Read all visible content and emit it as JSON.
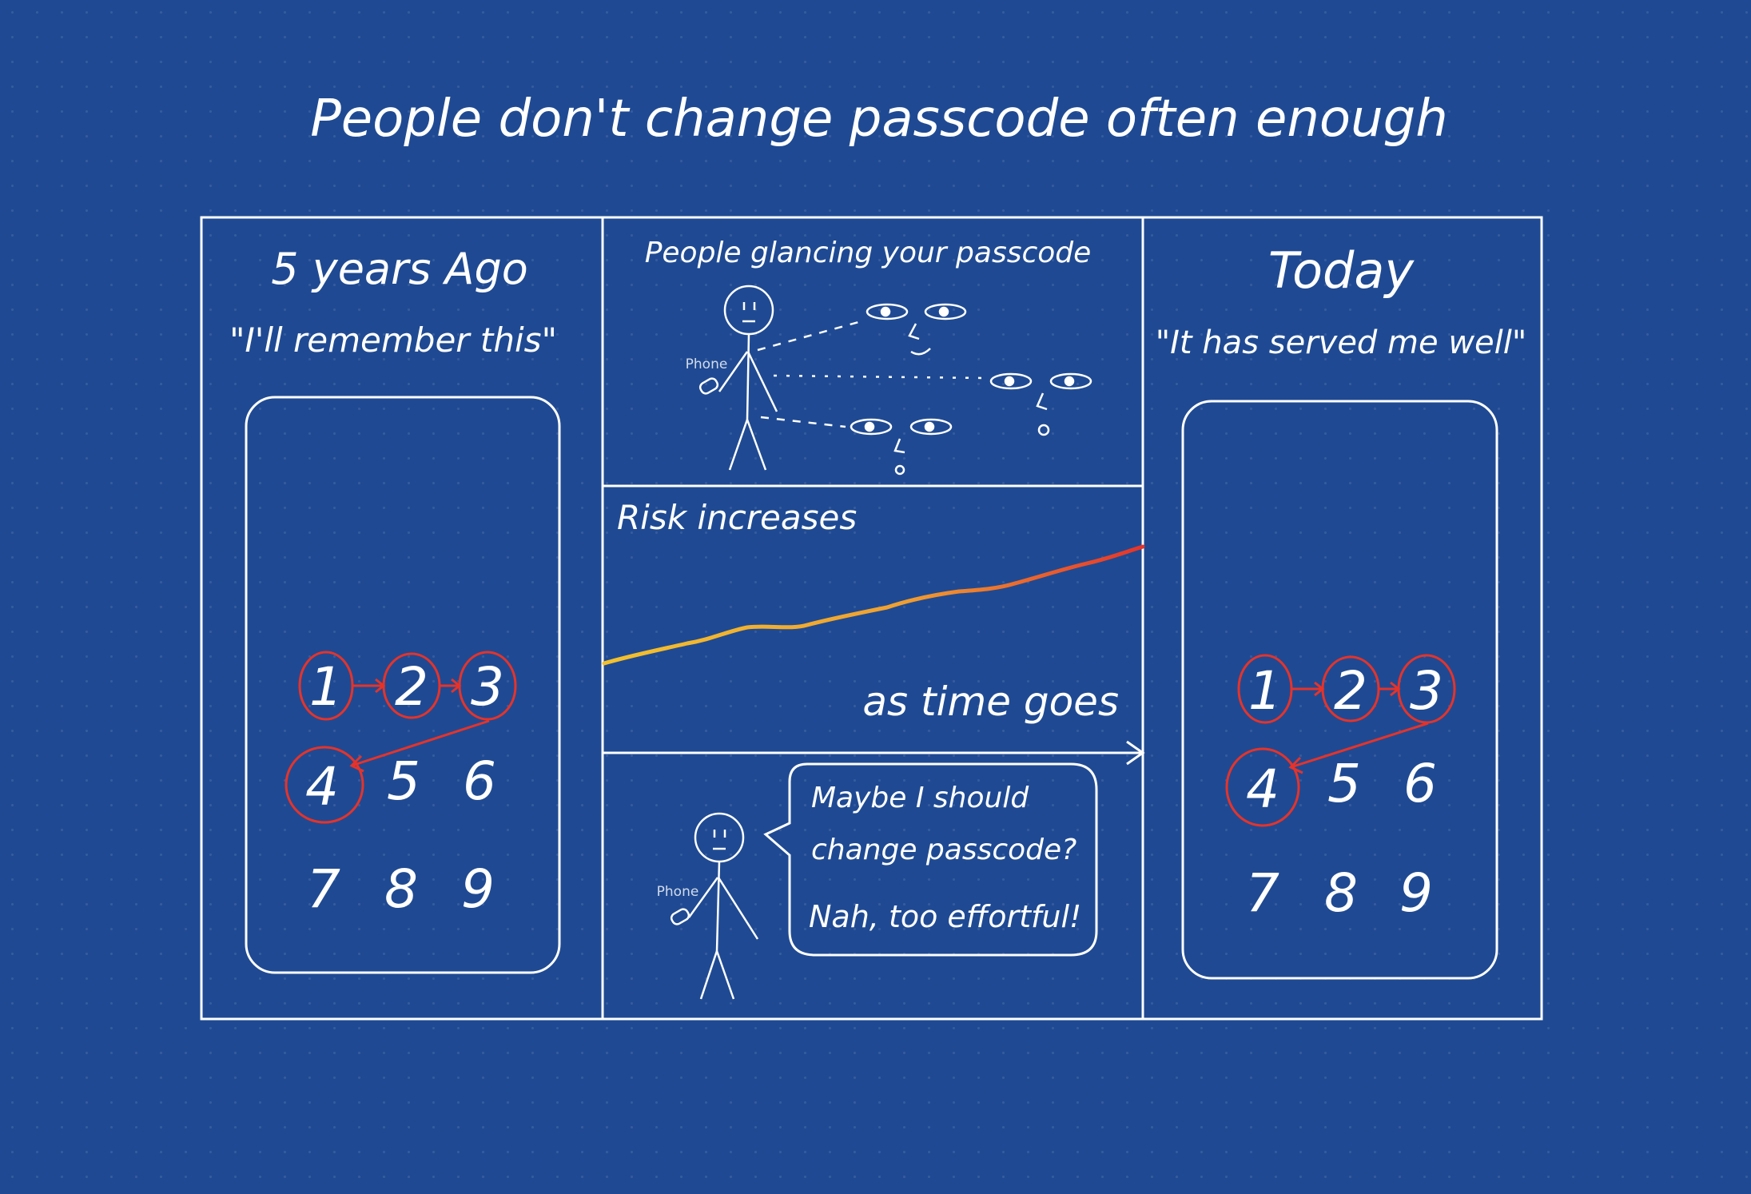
{
  "title": "People don't change passcode often enough",
  "panels": {
    "left": {
      "heading": "5 years Ago",
      "quote": "\"I'll remember this\"",
      "keypad": [
        "1",
        "2",
        "3",
        "4",
        "5",
        "6",
        "7",
        "8",
        "9"
      ],
      "highlighted": [
        "1",
        "2",
        "3",
        "4"
      ]
    },
    "top_middle": {
      "heading": "People glancing your passcode",
      "phone_label": "Phone"
    },
    "middle": {
      "heading": "Risk increases",
      "axis_label": "as time goes"
    },
    "bottom_middle": {
      "phone_label": "Phone",
      "speech_line1": "Maybe I should",
      "speech_line2": "change passcode?",
      "speech_line3": "Nah, too effortful!"
    },
    "right": {
      "heading": "Today",
      "quote": "\"It has served me well\"",
      "keypad": [
        "1",
        "2",
        "3",
        "4",
        "5",
        "6",
        "7",
        "8",
        "9"
      ],
      "highlighted": [
        "1",
        "2",
        "3",
        "4"
      ]
    }
  },
  "colors": {
    "background": "#1f4a93",
    "ink": "#ffffff",
    "highlight": "#e5332a",
    "risk_low": "#f2c12e",
    "risk_high": "#e5332a"
  },
  "icons": [
    "stick-figure-icon",
    "phone-icon",
    "eyes-icon",
    "arrow-icon",
    "speech-bubble-icon"
  ]
}
